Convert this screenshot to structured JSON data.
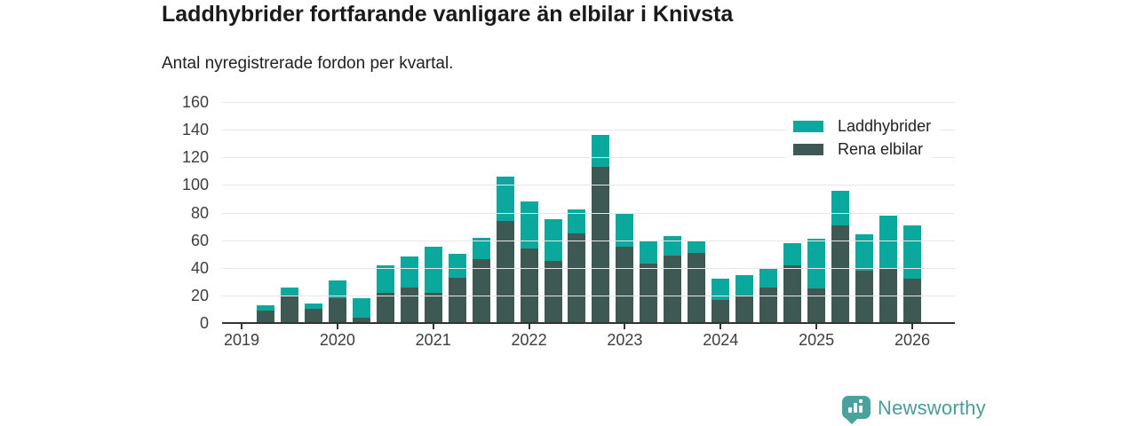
{
  "logo": {
    "brand": "Newsworthy",
    "badge_color": "#4ba19b",
    "text_color": "#4a9c96"
  },
  "chart_data": {
    "type": "bar",
    "stacked": true,
    "title": "Laddhybrider fortfarande vanligare än elbilar i Knivsta",
    "subtitle": "Antal nyregistrerade fordon per kvartal.",
    "categories": [
      "2019 Q1",
      "2019 Q2",
      "2019 Q3",
      "2019 Q4",
      "2020 Q1",
      "2020 Q2",
      "2020 Q3",
      "2020 Q4",
      "2021 Q1",
      "2021 Q2",
      "2021 Q3",
      "2021 Q4",
      "2022 Q1",
      "2022 Q2",
      "2022 Q3",
      "2022 Q4",
      "2023 Q1",
      "2023 Q2",
      "2023 Q3",
      "2023 Q4",
      "2024 Q1",
      "2024 Q2",
      "2024 Q3",
      "2024 Q4",
      "2025 Q1",
      "2025 Q2",
      "2025 Q3",
      "2025 Q4",
      "2026 Q1"
    ],
    "series": [
      {
        "name": "Rena elbilar",
        "color": "#3e5954",
        "stack_position": "bottom",
        "values": [
          0,
          9,
          20,
          10,
          18,
          4,
          22,
          26,
          22,
          33,
          46,
          74,
          54,
          45,
          65,
          113,
          55,
          43,
          49,
          51,
          17,
          19,
          26,
          42,
          25,
          71,
          38,
          39,
          32
        ]
      },
      {
        "name": "Laddhybrider",
        "color": "#0ba89e",
        "stack_position": "top",
        "values": [
          0,
          4,
          6,
          4,
          13,
          14,
          20,
          22,
          33,
          17,
          16,
          32,
          34,
          30,
          17,
          23,
          25,
          16,
          14,
          9,
          15,
          16,
          14,
          16,
          36,
          25,
          26,
          39,
          39
        ]
      }
    ],
    "legend": [
      {
        "label": "Laddhybrider",
        "color": "#0ba89e"
      },
      {
        "label": "Rena elbilar",
        "color": "#3e5954"
      }
    ],
    "xlabel": "",
    "ylabel": "",
    "ylim": [
      0,
      160
    ],
    "yticks": [
      0,
      20,
      40,
      60,
      80,
      100,
      120,
      140,
      160
    ],
    "x_year_labels": [
      "2019",
      "2020",
      "2021",
      "2022",
      "2023",
      "2024",
      "2025",
      "2026"
    ],
    "grid": "horizontal",
    "legend_position": "top-right"
  }
}
